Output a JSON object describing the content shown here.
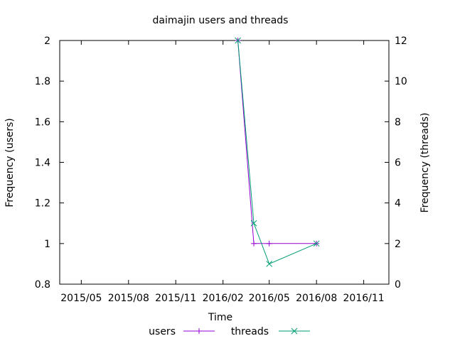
{
  "chart_data": {
    "type": "line",
    "title": "daimajin users and threads",
    "xlabel": "Time",
    "ylabel": "Frequency (users)",
    "y2label": "Frequency (threads)",
    "x_ticks": [
      "2015/05",
      "2015/08",
      "2015/11",
      "2016/02",
      "2016/05",
      "2016/08",
      "2016/11"
    ],
    "xlim": [
      "2015-03-20",
      "2016-12-20"
    ],
    "ylim": [
      0.8,
      2.0
    ],
    "y_ticks": [
      0.8,
      1.0,
      1.2,
      1.4,
      1.6,
      1.8,
      2.0
    ],
    "y_tick_labels": [
      "0.8",
      "1",
      "1.2",
      "1.4",
      "1.6",
      "1.8",
      "2"
    ],
    "y2lim": [
      0,
      12
    ],
    "y2_ticks": [
      0,
      2,
      4,
      6,
      8,
      10,
      12
    ],
    "y2_tick_labels": [
      "0",
      "2",
      "4",
      "6",
      "8",
      "10",
      "12"
    ],
    "grid": false,
    "legend_position": "bottom-center",
    "series": [
      {
        "name": "users",
        "axis": "left",
        "color": "#9400d3",
        "marker": "plus",
        "x": [
          "2016-03-01",
          "2016-04-01",
          "2016-05-01",
          "2016-08-01"
        ],
        "y": [
          2,
          1,
          1,
          1
        ]
      },
      {
        "name": "threads",
        "axis": "right",
        "color": "#009e73",
        "marker": "cross",
        "x": [
          "2016-03-01",
          "2016-04-01",
          "2016-05-01",
          "2016-08-01"
        ],
        "y": [
          12,
          3,
          1,
          2
        ]
      }
    ]
  }
}
